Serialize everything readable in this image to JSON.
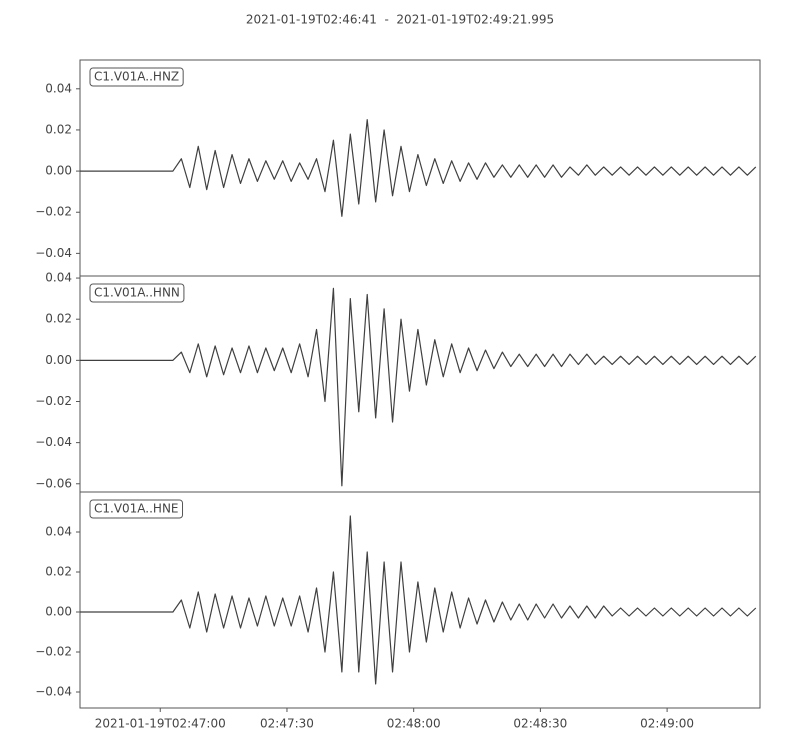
{
  "title": "2021-01-19T02:46:41  -  2021-01-19T02:49:21.995",
  "xlim": [
    0,
    160.995
  ],
  "xticks": [
    {
      "value": 19,
      "label": "2021-01-19T02:47:00"
    },
    {
      "value": 49,
      "label": "02:47:30"
    },
    {
      "value": 79,
      "label": "02:48:00"
    },
    {
      "value": 109,
      "label": "02:48:30"
    },
    {
      "value": 139,
      "label": "02:49:00"
    }
  ],
  "x": [
    0,
    2,
    4,
    6,
    8,
    10,
    12,
    14,
    16,
    18,
    20,
    22,
    24,
    26,
    28,
    30,
    32,
    34,
    36,
    38,
    40,
    42,
    44,
    46,
    48,
    50,
    52,
    54,
    56,
    58,
    60,
    62,
    64,
    66,
    68,
    70,
    72,
    74,
    76,
    78,
    80,
    82,
    84,
    86,
    88,
    90,
    92,
    94,
    96,
    98,
    100,
    102,
    104,
    106,
    108,
    110,
    112,
    114,
    116,
    118,
    120,
    122,
    124,
    126,
    128,
    130,
    132,
    134,
    136,
    138,
    140,
    142,
    144,
    146,
    148,
    150,
    152,
    154,
    156,
    158,
    160
  ],
  "chart_data": [
    {
      "type": "line",
      "ylim": [
        -0.051,
        0.054
      ],
      "yticks": [
        {
          "value": 0.04,
          "label": "0.04"
        },
        {
          "value": 0.02,
          "label": "0.02"
        },
        {
          "value": 0,
          "label": "0.00"
        },
        {
          "value": -0.02,
          "label": "−0.02"
        },
        {
          "value": -0.04,
          "label": "−0.04"
        }
      ],
      "series": [
        {
          "name": "C1.V01A..HNZ",
          "color": "#404040",
          "values": [
            0,
            0,
            0,
            0,
            0,
            0,
            0,
            0,
            0,
            0,
            0,
            0,
            0.006,
            -0.008,
            0.012,
            -0.009,
            0.01,
            -0.008,
            0.008,
            -0.006,
            0.006,
            -0.005,
            0.005,
            -0.004,
            0.005,
            -0.005,
            0.004,
            -0.004,
            0.006,
            -0.01,
            0.015,
            -0.022,
            0.018,
            -0.016,
            0.025,
            -0.015,
            0.02,
            -0.012,
            0.012,
            -0.01,
            0.008,
            -0.007,
            0.006,
            -0.006,
            0.005,
            -0.005,
            0.004,
            -0.004,
            0.004,
            -0.003,
            0.003,
            -0.003,
            0.003,
            -0.003,
            0.003,
            -0.003,
            0.003,
            -0.003,
            0.002,
            -0.002,
            0.003,
            -0.002,
            0.002,
            -0.002,
            0.002,
            -0.002,
            0.002,
            -0.002,
            0.002,
            -0.002,
            0.002,
            -0.002,
            0.002,
            -0.002,
            0.002,
            -0.002,
            0.002,
            -0.002,
            0.002,
            -0.002,
            0.002
          ]
        }
      ]
    },
    {
      "type": "line",
      "ylim": [
        -0.064,
        0.041
      ],
      "yticks": [
        {
          "value": 0.04,
          "label": "0.04"
        },
        {
          "value": 0.02,
          "label": "0.02"
        },
        {
          "value": 0,
          "label": "0.00"
        },
        {
          "value": -0.02,
          "label": "−0.02"
        },
        {
          "value": -0.04,
          "label": "−0.04"
        },
        {
          "value": -0.06,
          "label": "−0.06"
        }
      ],
      "series": [
        {
          "name": "C1.V01A..HNN",
          "color": "#404040",
          "values": [
            0,
            0,
            0,
            0,
            0,
            0,
            0,
            0,
            0,
            0,
            0,
            0,
            0.004,
            -0.006,
            0.008,
            -0.008,
            0.007,
            -0.007,
            0.006,
            -0.006,
            0.007,
            -0.006,
            0.006,
            -0.005,
            0.006,
            -0.006,
            0.008,
            -0.008,
            0.015,
            -0.02,
            0.035,
            -0.061,
            0.03,
            -0.025,
            0.032,
            -0.028,
            0.025,
            -0.03,
            0.02,
            -0.015,
            0.015,
            -0.012,
            0.01,
            -0.008,
            0.008,
            -0.006,
            0.006,
            -0.005,
            0.005,
            -0.004,
            0.004,
            -0.003,
            0.003,
            -0.003,
            0.003,
            -0.003,
            0.003,
            -0.003,
            0.003,
            -0.002,
            0.003,
            -0.002,
            0.002,
            -0.002,
            0.002,
            -0.002,
            0.002,
            -0.002,
            0.002,
            -0.002,
            0.002,
            -0.002,
            0.002,
            -0.002,
            0.002,
            -0.002,
            0.002,
            -0.002,
            0.002,
            -0.002,
            0.002
          ]
        }
      ]
    },
    {
      "type": "line",
      "ylim": [
        -0.048,
        0.06
      ],
      "yticks": [
        {
          "value": 0.04,
          "label": "0.04"
        },
        {
          "value": 0.02,
          "label": "0.02"
        },
        {
          "value": 0,
          "label": "0.00"
        },
        {
          "value": -0.02,
          "label": "−0.02"
        },
        {
          "value": -0.04,
          "label": "−0.04"
        }
      ],
      "series": [
        {
          "name": "C1.V01A..HNE",
          "color": "#404040",
          "values": [
            0,
            0,
            0,
            0,
            0,
            0,
            0,
            0,
            0,
            0,
            0,
            0,
            0.006,
            -0.008,
            0.01,
            -0.01,
            0.009,
            -0.008,
            0.008,
            -0.008,
            0.007,
            -0.007,
            0.008,
            -0.007,
            0.007,
            -0.007,
            0.008,
            -0.01,
            0.012,
            -0.02,
            0.02,
            -0.03,
            0.048,
            -0.03,
            0.03,
            -0.036,
            0.025,
            -0.03,
            0.025,
            -0.02,
            0.015,
            -0.015,
            0.012,
            -0.01,
            0.01,
            -0.008,
            0.007,
            -0.006,
            0.006,
            -0.005,
            0.005,
            -0.004,
            0.004,
            -0.004,
            0.004,
            -0.003,
            0.004,
            -0.003,
            0.003,
            -0.003,
            0.003,
            -0.003,
            0.003,
            -0.002,
            0.002,
            -0.002,
            0.002,
            -0.002,
            0.002,
            -0.002,
            0.002,
            -0.002,
            0.002,
            -0.002,
            0.002,
            -0.002,
            0.002,
            -0.002,
            0.002,
            -0.002,
            0.002
          ]
        }
      ]
    }
  ]
}
